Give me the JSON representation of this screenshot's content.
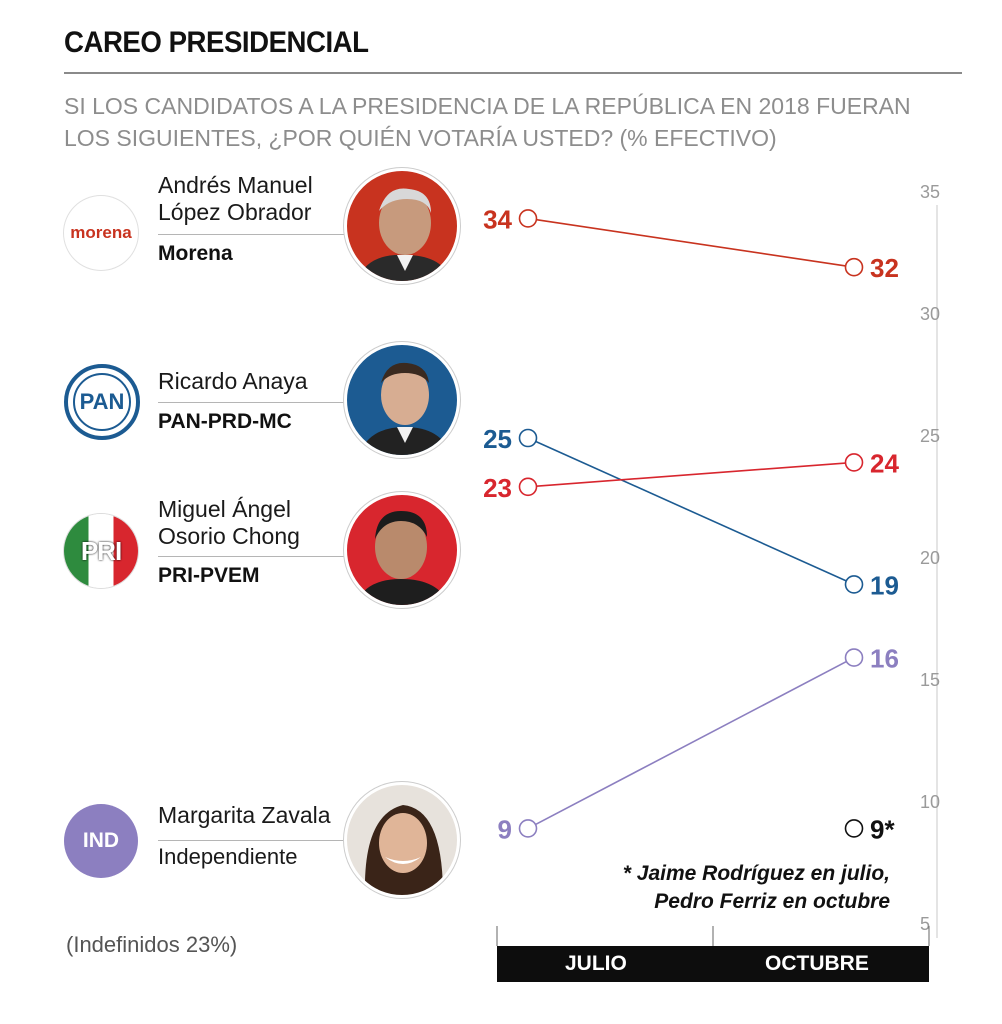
{
  "title": "CAREO PRESIDENCIAL",
  "subtitle": "SI LOS CANDIDATOS A LA PRESIDENCIA DE LA REPÚBLICA EN 2018 FUERAN LOS SIGUIENTES, ¿POR QUIÉN VOTARÍA USTED? (% EFECTIVO)",
  "candidates": [
    {
      "name_line1": "Andrés Manuel",
      "name_line2": "López Obrador",
      "party": "Morena",
      "logo_text": "morena"
    },
    {
      "name_line1": "Ricardo Anaya",
      "name_line2": "",
      "party": "PAN-PRD-MC",
      "logo_text": "PAN"
    },
    {
      "name_line1": "Miguel Ángel",
      "name_line2": "Osorio Chong",
      "party": "PRI-PVEM",
      "logo_text": "PRI"
    },
    {
      "name_line1": "Margarita Zavala",
      "name_line2": "",
      "party": "Independiente",
      "logo_text": "IND"
    }
  ],
  "note": "(Indefinidos 23%)",
  "footnote_line1": "* Jaime Rodríguez en julio,",
  "footnote_line2": "Pedro Ferriz en octubre",
  "chart_data": {
    "type": "line",
    "categories": [
      "JULIO",
      "OCTUBRE"
    ],
    "ylim": [
      5,
      35
    ],
    "yticks": [
      35,
      30,
      25,
      20,
      15,
      10,
      5
    ],
    "series": [
      {
        "values": [
          34,
          32
        ],
        "labels": [
          "34",
          "32"
        ],
        "color": "#c8331f"
      },
      {
        "values": [
          25,
          19
        ],
        "labels": [
          "25",
          "19"
        ],
        "color": "#1c5b92"
      },
      {
        "values": [
          23,
          24
        ],
        "labels": [
          "23",
          "24"
        ],
        "color": "#d8262e"
      },
      {
        "values": [
          9,
          16
        ],
        "labels": [
          "9",
          "16"
        ],
        "color": "#8c7fc0"
      },
      {
        "values": [
          null,
          9
        ],
        "labels": [
          "",
          "9*"
        ],
        "color": "#111111"
      }
    ]
  },
  "colors": {
    "morena": "#c8331f",
    "pan": "#1c5b92",
    "pri_red": "#d8262e",
    "ind": "#8c7fc0"
  }
}
